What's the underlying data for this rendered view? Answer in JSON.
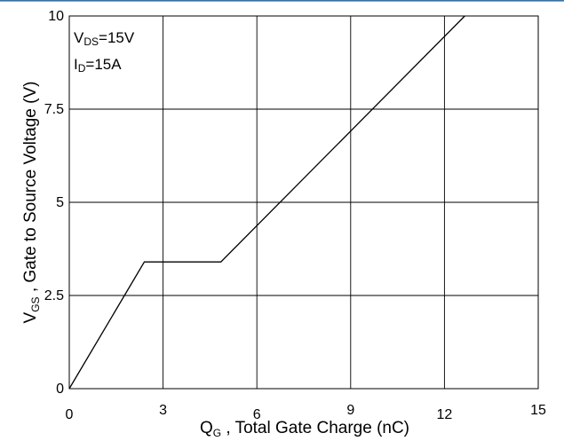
{
  "chart_data": {
    "type": "line",
    "title": "",
    "conditions": [
      {
        "symbol": "V",
        "subscript": "DS",
        "value": "=15V"
      },
      {
        "symbol": "I",
        "subscript": "D",
        "value": "=15A"
      }
    ],
    "xlabel": {
      "symbol": "Q",
      "subscript": "G",
      "text": " , Total Gate Charge (nC)"
    },
    "ylabel": {
      "symbol": "V",
      "subscript": "GS",
      "text": " , Gate to Source Voltage (V)"
    },
    "xlim": [
      0,
      15
    ],
    "ylim": [
      0,
      10
    ],
    "xticks": [
      {
        "value": 0,
        "label": "0"
      },
      {
        "value": 3,
        "label": "3"
      },
      {
        "value": 6,
        "label": "6"
      },
      {
        "value": 9,
        "label": "9"
      },
      {
        "value": 12,
        "label": "12"
      },
      {
        "value": 15,
        "label": "15"
      }
    ],
    "yticks": [
      {
        "value": 0,
        "label": "0"
      },
      {
        "value": 2.5,
        "label": "2.5"
      },
      {
        "value": 5,
        "label": "5"
      },
      {
        "value": 7.5,
        "label": "7.5"
      },
      {
        "value": 10,
        "label": "10"
      }
    ],
    "grid": true,
    "series": [
      {
        "x": [
          0,
          2.4,
          4.85,
          12.65
        ],
        "y": [
          0,
          3.4,
          3.4,
          10
        ]
      }
    ],
    "colors": {
      "line": "#000000",
      "grid": "#000000",
      "frame": "#000000",
      "top_accent": "#2e75b6"
    }
  }
}
